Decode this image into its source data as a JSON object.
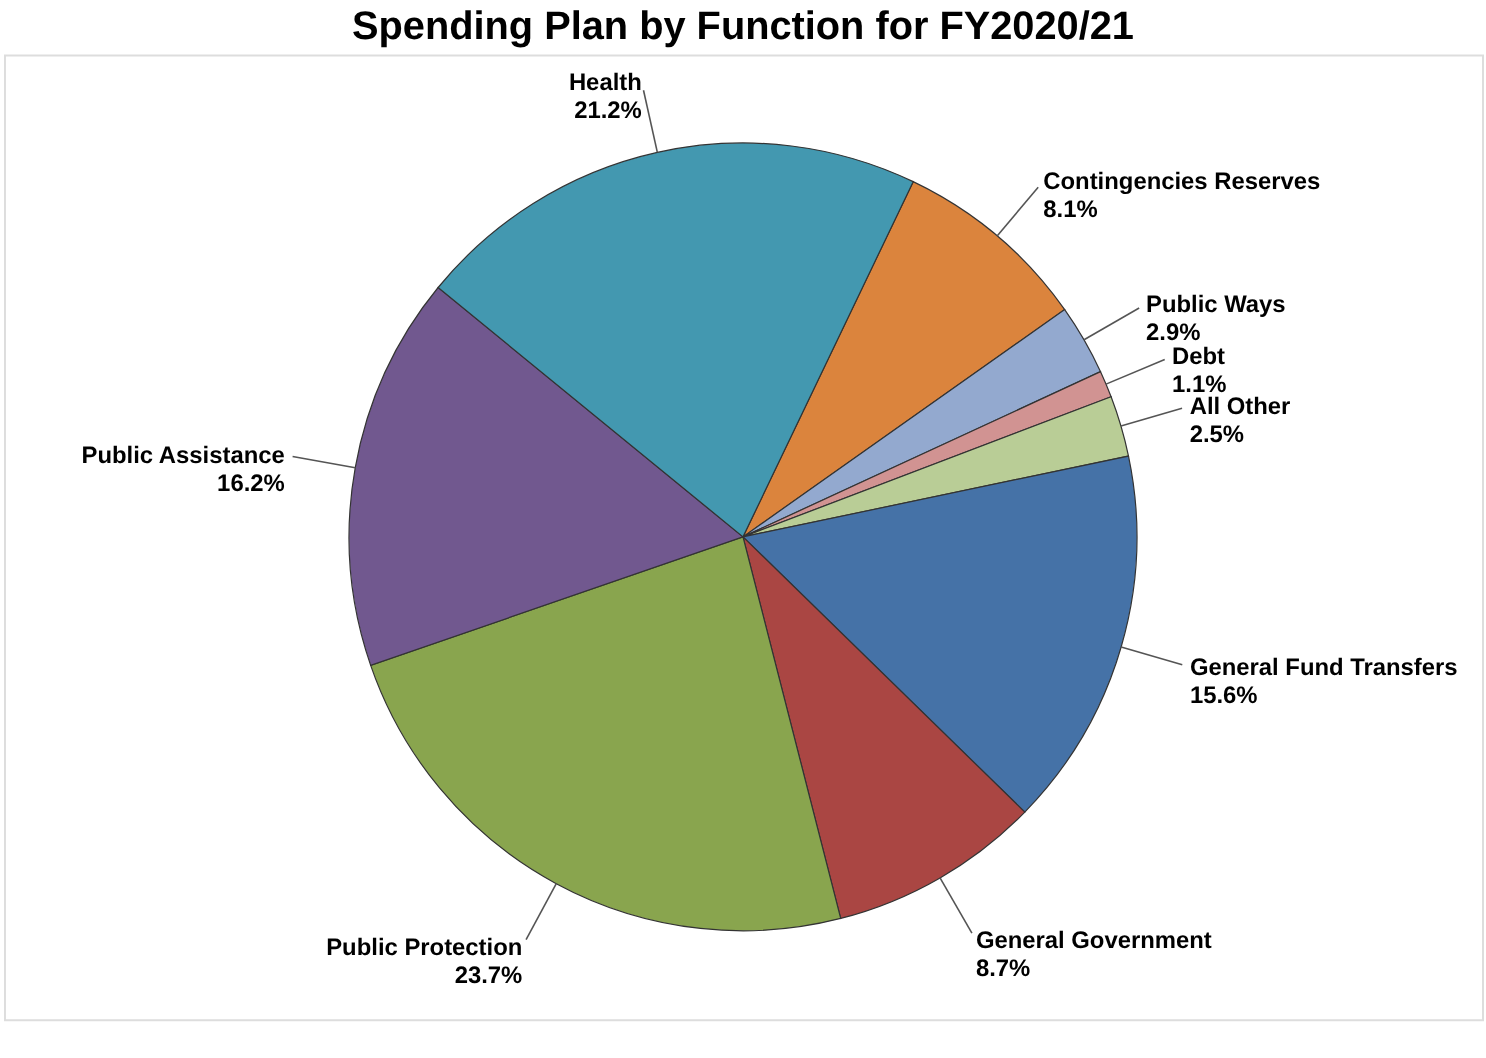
{
  "chart_data": {
    "type": "pie",
    "title": "Spending Plan by Function for FY2020/21",
    "categories": [
      "Contingencies Reserves",
      "Public Ways",
      "Debt",
      "All Other",
      "General Fund Transfers",
      "General Government",
      "Public Protection",
      "Public Assistance",
      "Health"
    ],
    "values": [
      8.1,
      2.9,
      1.1,
      2.5,
      15.6,
      8.7,
      23.7,
      16.2,
      21.2
    ],
    "value_labels": [
      "8.1%",
      "2.9%",
      "1.1%",
      "2.5%",
      "15.6%",
      "8.7%",
      "23.7%",
      "16.2%",
      "21.2%"
    ],
    "colors": [
      "#db843d",
      "#93a9cf",
      "#d19392",
      "#b9cd96",
      "#4572a7",
      "#aa4643",
      "#89a54e",
      "#71588f",
      "#4398b0"
    ],
    "legend": false
  }
}
